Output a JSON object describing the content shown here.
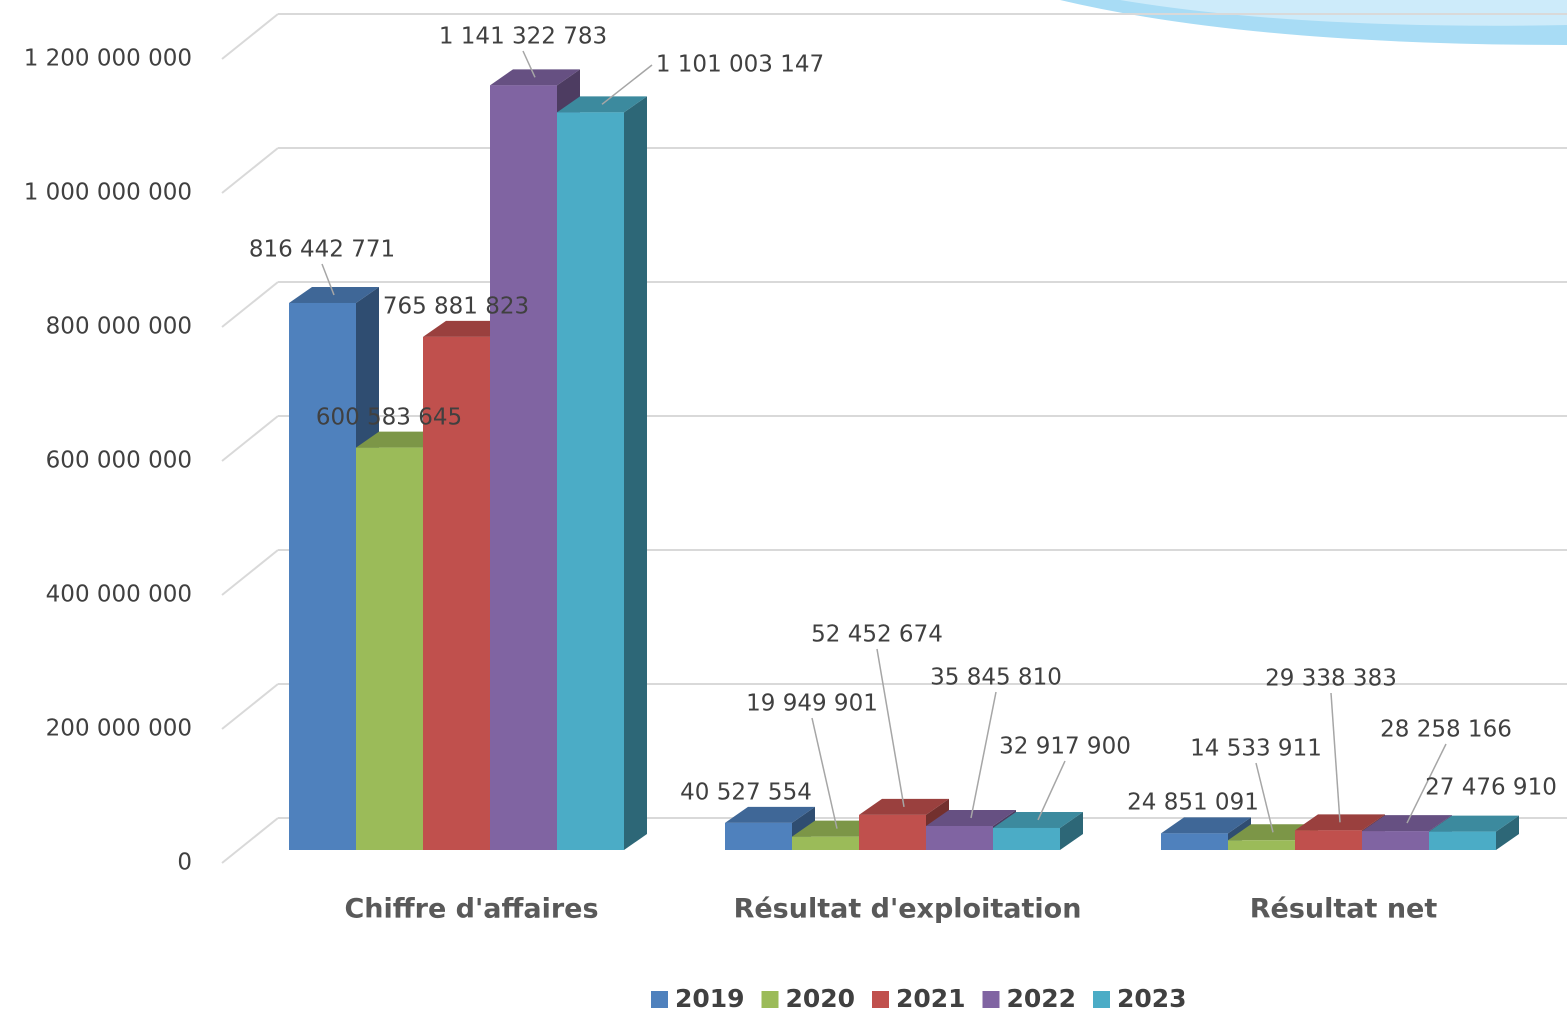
{
  "chart_data": {
    "type": "bar3d",
    "categories": [
      "Chiffre d'affaires",
      "Résultat d'exploitation",
      "Résultat net"
    ],
    "series": [
      {
        "name": "2019",
        "color": "#4f81bd",
        "values": [
          816442771,
          40527554,
          24851091
        ],
        "value_labels": [
          "816 442 771",
          "40 527 554",
          "24 851 091"
        ]
      },
      {
        "name": "2020",
        "color": "#9bbb59",
        "values": [
          600583645,
          19949901,
          14533911
        ],
        "value_labels": [
          "600 583 645",
          "19 949 901",
          "14 533 911"
        ]
      },
      {
        "name": "2021",
        "color": "#c0504d",
        "values": [
          765881823,
          52452674,
          29338383
        ],
        "value_labels": [
          "765 881 823",
          "52 452 674",
          "29 338 383"
        ]
      },
      {
        "name": "2022",
        "color": "#8064a2",
        "values": [
          1141322783,
          35845810,
          28258166
        ],
        "value_labels": [
          "1 141 322 783",
          "35 845 810",
          "28 258 166"
        ]
      },
      {
        "name": "2023",
        "color": "#4bacc6",
        "values": [
          1101003147,
          32917900,
          27476910
        ],
        "value_labels": [
          "1 101 003 147",
          "32 917 900",
          "27 476 910"
        ]
      }
    ],
    "ylim": [
      0,
      1200000000
    ],
    "yticks": [
      0,
      {
        "value": 200000000,
        "label": "200 000 000"
      },
      {
        "value": 400000000,
        "label": "400 000 000"
      },
      {
        "value": 600000000,
        "label": "600 000 000"
      },
      {
        "value": 800000000,
        "label": "800 000 000"
      },
      {
        "value": 1000000000,
        "label": "1 000 000 000"
      },
      {
        "value": 1200000000,
        "label": "1 200 000 000"
      }
    ],
    "grid": true,
    "legend": "bottom"
  }
}
